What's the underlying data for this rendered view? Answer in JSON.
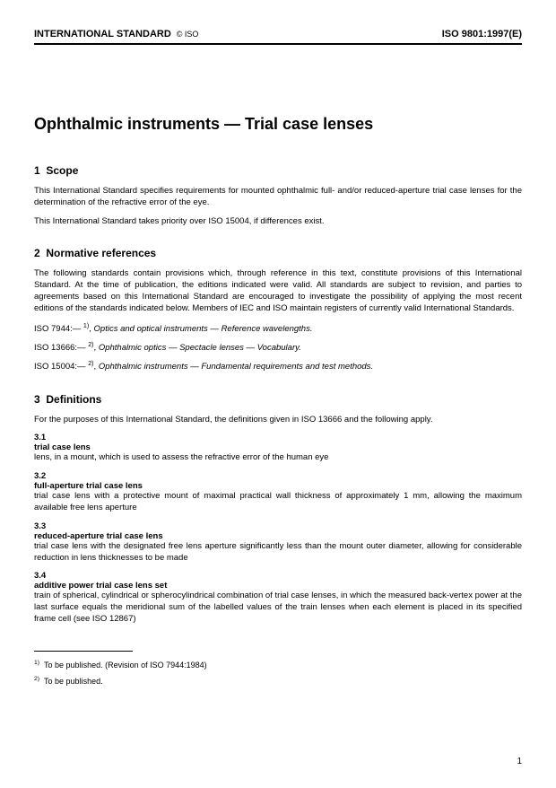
{
  "header": {
    "left": "INTERNATIONAL STANDARD",
    "copyright": "© ISO",
    "right": "ISO 9801:1997(E)"
  },
  "title": "Ophthalmic instruments — Trial case lenses",
  "sections": {
    "s1": {
      "num": "1",
      "name": "Scope"
    },
    "s2": {
      "num": "2",
      "name": "Normative references"
    },
    "s3": {
      "num": "3",
      "name": "Definitions"
    }
  },
  "scope": {
    "p1": "This International Standard specifies requirements for mounted ophthalmic full- and/or reduced-aperture trial case lenses for the determination of the refractive error of the eye.",
    "p2": "This International Standard takes priority over ISO 15004, if differences exist."
  },
  "normative": {
    "intro": "The following standards contain provisions which, through reference in this text, constitute provisions of this International Standard. At the time of publication, the editions indicated were valid. All standards are subject to revision, and parties to agreements based on this International Standard are encouraged to investigate the possibility of applying the most recent editions of the standards indicated below. Members of IEC and ISO maintain registers of currently valid International Standards.",
    "r1_code": "ISO 7944:—",
    "r1_sup": "1)",
    "r1_title": "Optics and optical instruments — Reference wavelengths.",
    "r2_code": "ISO 13666:—",
    "r2_sup": "2)",
    "r2_title": "Ophthalmic optics — Spectacle lenses — Vocabulary.",
    "r3_code": "ISO 15004:—",
    "r3_sup": "2)",
    "r3_title": "Ophthalmic instruments — Fundamental requirements and test methods."
  },
  "defs": {
    "intro": "For the purposes of this International Standard, the definitions given in ISO 13666 and the following apply.",
    "d1": {
      "num": "3.1",
      "term": "trial case lens",
      "body": "lens, in a mount, which is used to assess the refractive error of the human eye"
    },
    "d2": {
      "num": "3.2",
      "term": "full-aperture trial case lens",
      "body": "trial case lens with a protective mount of maximal practical wall thickness of approximately 1 mm, allowing the maximum available free lens aperture"
    },
    "d3": {
      "num": "3.3",
      "term": "reduced-aperture trial case lens",
      "body": "trial case lens with the designated free lens aperture significantly less than the mount outer diameter, allowing for considerable reduction in lens thicknesses to be made"
    },
    "d4": {
      "num": "3.4",
      "term": "additive power trial case lens set",
      "body": "train of spherical, cylindrical or spherocylindrical combination of trial case lenses, in which the measured back-vertex power at the last surface equals the meridional sum of the labelled values of the train lenses when each element is placed in its specified frame cell (see ISO 12867)"
    }
  },
  "footnotes": {
    "f1_sup": "1)",
    "f1": "To be published. (Revision of ISO 7944:1984)",
    "f2_sup": "2)",
    "f2": "To be published."
  },
  "pagenum": "1"
}
